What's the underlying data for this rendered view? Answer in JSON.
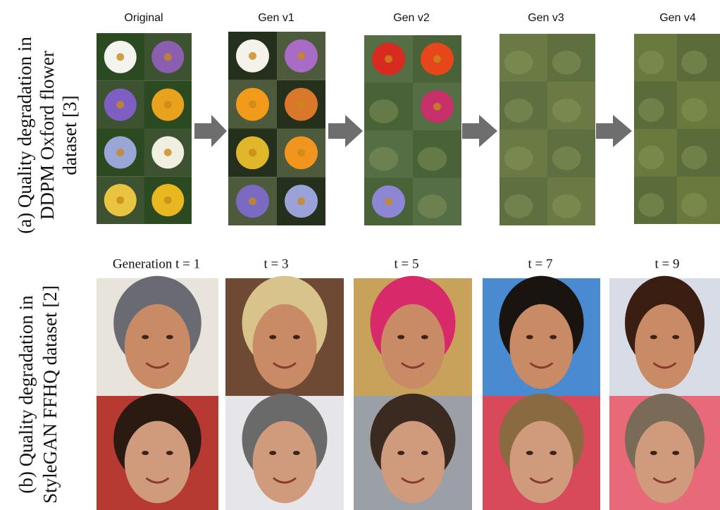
{
  "panel_a": {
    "label_lines": [
      "(a) Quality degradation in",
      "DDPM Oxford flower",
      "dataset [3]"
    ],
    "columns": [
      "Original",
      "Gen v1",
      "Gen v2",
      "Gen v3",
      "Gen v4"
    ]
  },
  "panel_b": {
    "label_lines": [
      "(b) Quality degradation in",
      "StyleGAN FFHQ dataset [2]"
    ],
    "columns": [
      "Generation t = 1",
      "t = 3",
      "t = 5",
      "t = 7",
      "t = 9"
    ]
  }
}
